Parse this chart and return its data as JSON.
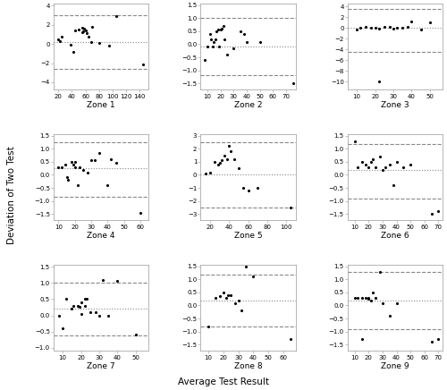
{
  "zones": [
    {
      "name": "Zone 1",
      "xlim": [
        13,
        153
      ],
      "ylim": [
        -4.8,
        4.2
      ],
      "xticks": [
        20,
        40,
        60,
        80,
        100,
        120,
        140
      ],
      "yticks": [
        -4,
        -2,
        0,
        2,
        4
      ],
      "mean_line": 0.2,
      "upper_loa": 3.0,
      "lower_loa": -2.6,
      "points_x": [
        20,
        22,
        25,
        38,
        42,
        45,
        50,
        55,
        55,
        57,
        58,
        60,
        62,
        65,
        68,
        70,
        80,
        95,
        105,
        145
      ],
      "points_y": [
        0.5,
        0.3,
        0.8,
        -0.1,
        -0.8,
        1.4,
        1.5,
        1.7,
        1.2,
        1.3,
        1.6,
        1.4,
        1.1,
        0.8,
        0.2,
        1.8,
        0.1,
        -0.2,
        2.9,
        -2.1
      ]
    },
    {
      "name": "Zone 2",
      "xlim": [
        5,
        77
      ],
      "ylim": [
        -1.75,
        1.55
      ],
      "xticks": [
        10,
        20,
        30,
        40,
        50,
        60,
        70
      ],
      "yticks": [
        -1.5,
        -1.0,
        -0.5,
        0.0,
        0.5,
        1.0,
        1.5
      ],
      "mean_line": -0.1,
      "upper_loa": 1.0,
      "lower_loa": -1.2,
      "points_x": [
        8,
        10,
        12,
        13,
        14,
        15,
        16,
        17,
        18,
        19,
        20,
        21,
        22,
        23,
        25,
        30,
        35,
        38,
        40,
        50,
        75
      ],
      "points_y": [
        -0.6,
        -0.1,
        0.4,
        0.2,
        -0.1,
        0.1,
        0.2,
        0.5,
        0.55,
        -0.1,
        0.55,
        0.6,
        0.7,
        0.2,
        -0.4,
        -0.15,
        0.5,
        0.4,
        0.1,
        0.1,
        -1.5
      ]
    },
    {
      "name": "Zone 3",
      "xlim": [
        5,
        57
      ],
      "ylim": [
        -11.5,
        4.5
      ],
      "xticks": [
        10,
        20,
        30,
        40,
        50
      ],
      "yticks": [
        -10,
        -8,
        -6,
        -4,
        -2,
        0,
        2,
        4
      ],
      "mean_line": 0.0,
      "upper_loa": 3.5,
      "lower_loa": -4.5,
      "points_x": [
        10,
        12,
        15,
        18,
        20,
        22,
        25,
        28,
        30,
        32,
        35,
        38,
        40,
        45,
        50,
        22
      ],
      "points_y": [
        -0.2,
        0.0,
        0.2,
        0.1,
        0.0,
        -0.1,
        0.3,
        0.2,
        -0.1,
        0.1,
        0.0,
        0.15,
        1.2,
        -0.2,
        1.1,
        -10.0
      ]
    },
    {
      "name": "Zone 4",
      "xlim": [
        7,
        65
      ],
      "ylim": [
        -1.75,
        1.55
      ],
      "xticks": [
        10,
        20,
        30,
        40,
        50,
        60
      ],
      "yticks": [
        -1.5,
        -1.0,
        -0.5,
        0.0,
        0.5,
        1.0,
        1.5
      ],
      "mean_line": 0.27,
      "upper_loa": 1.25,
      "lower_loa": -0.85,
      "points_x": [
        10,
        12,
        14,
        15,
        16,
        18,
        19,
        20,
        20,
        22,
        23,
        25,
        28,
        30,
        32,
        35,
        40,
        42,
        45,
        60
      ],
      "points_y": [
        0.3,
        0.3,
        0.4,
        -0.1,
        -0.2,
        0.5,
        0.4,
        0.3,
        0.5,
        -0.4,
        0.3,
        0.2,
        0.1,
        0.55,
        0.55,
        0.85,
        -0.4,
        0.6,
        0.45,
        -1.45
      ]
    },
    {
      "name": "Zone 5",
      "xlim": [
        10,
        110
      ],
      "ylim": [
        -3.5,
        3.1
      ],
      "xticks": [
        20,
        40,
        60,
        80,
        100
      ],
      "yticks": [
        -3,
        -2,
        -1,
        0,
        1,
        2,
        3
      ],
      "mean_line": 0.0,
      "upper_loa": 2.5,
      "lower_loa": -2.5,
      "points_x": [
        15,
        20,
        25,
        28,
        30,
        32,
        35,
        38,
        40,
        42,
        45,
        50,
        55,
        60,
        70,
        105
      ],
      "points_y": [
        0.1,
        0.2,
        1.0,
        0.8,
        0.9,
        1.1,
        1.5,
        1.2,
        2.2,
        1.8,
        1.2,
        0.5,
        -1.0,
        -1.2,
        -1.0,
        -2.5
      ]
    },
    {
      "name": "Zone 6",
      "xlim": [
        5,
        73
      ],
      "ylim": [
        -1.75,
        1.55
      ],
      "xticks": [
        10,
        20,
        30,
        40,
        50,
        60,
        70
      ],
      "yticks": [
        -1.5,
        -1.0,
        -0.5,
        0.0,
        0.5,
        1.0,
        1.5
      ],
      "mean_line": 0.2,
      "upper_loa": 1.2,
      "lower_loa": -0.9,
      "points_x": [
        10,
        12,
        15,
        18,
        20,
        22,
        23,
        25,
        28,
        30,
        32,
        35,
        38,
        40,
        45,
        50,
        65,
        70
      ],
      "points_y": [
        1.3,
        0.3,
        0.5,
        0.4,
        0.3,
        0.5,
        0.6,
        0.3,
        0.7,
        0.2,
        0.3,
        0.4,
        -0.4,
        0.5,
        0.3,
        0.4,
        -1.5,
        -1.4
      ]
    },
    {
      "name": "Zone 7",
      "xlim": [
        5,
        57
      ],
      "ylim": [
        -1.1,
        1.55
      ],
      "xticks": [
        10,
        20,
        30,
        40,
        50
      ],
      "yticks": [
        -1.0,
        -0.5,
        0.0,
        0.5,
        1.0,
        1.5
      ],
      "mean_line": 0.2,
      "upper_loa": 1.0,
      "lower_loa": -0.62,
      "points_x": [
        8,
        10,
        12,
        15,
        16,
        18,
        19,
        20,
        20,
        22,
        22,
        23,
        25,
        28,
        30,
        32,
        35,
        40,
        50
      ],
      "points_y": [
        0.0,
        -0.4,
        0.5,
        0.2,
        0.3,
        0.3,
        0.25,
        0.4,
        0.05,
        0.3,
        0.5,
        0.5,
        0.1,
        0.1,
        0.0,
        1.1,
        0.0,
        1.05,
        -0.6
      ]
    },
    {
      "name": "Zone 8",
      "xlim": [
        5,
        68
      ],
      "ylim": [
        -1.75,
        1.55
      ],
      "xticks": [
        10,
        20,
        30,
        40,
        50,
        60
      ],
      "yticks": [
        -1.5,
        -1.0,
        -0.5,
        0.0,
        0.5,
        1.0,
        1.5
      ],
      "mean_line": 0.2,
      "upper_loa": 1.2,
      "lower_loa": -0.8,
      "points_x": [
        10,
        15,
        18,
        20,
        22,
        23,
        25,
        28,
        30,
        32,
        35,
        40,
        65
      ],
      "points_y": [
        -0.8,
        0.3,
        0.35,
        0.5,
        0.3,
        0.4,
        0.4,
        0.1,
        0.2,
        -0.2,
        1.5,
        1.1,
        -1.3
      ]
    },
    {
      "name": "Zone 9",
      "xlim": [
        5,
        73
      ],
      "ylim": [
        -1.75,
        1.55
      ],
      "xticks": [
        10,
        20,
        30,
        40,
        50,
        60,
        70
      ],
      "yticks": [
        -1.5,
        -1.0,
        -0.5,
        0.0,
        0.5,
        1.0,
        1.5
      ],
      "mean_line": 0.2,
      "upper_loa": 1.3,
      "lower_loa": -0.9,
      "points_x": [
        10,
        12,
        15,
        18,
        20,
        22,
        23,
        25,
        28,
        30,
        35,
        40,
        15,
        20,
        65,
        70
      ],
      "points_y": [
        0.3,
        0.3,
        -1.3,
        0.3,
        0.3,
        0.2,
        0.5,
        0.3,
        1.3,
        0.1,
        -0.4,
        0.1,
        0.3,
        0.25,
        -1.4,
        -1.3
      ]
    }
  ],
  "xlabel": "Average Test Result",
  "ylabel": "Deviation of Two Test",
  "point_color": "black",
  "point_size": 5,
  "mean_line_color": "#888888",
  "loa_line_color": "#888888",
  "background_color": "white",
  "linewidth": 0.8,
  "tick_labelsize": 5.0,
  "xlabel_fontsize": 6.5,
  "overall_label_fontsize": 7.5
}
